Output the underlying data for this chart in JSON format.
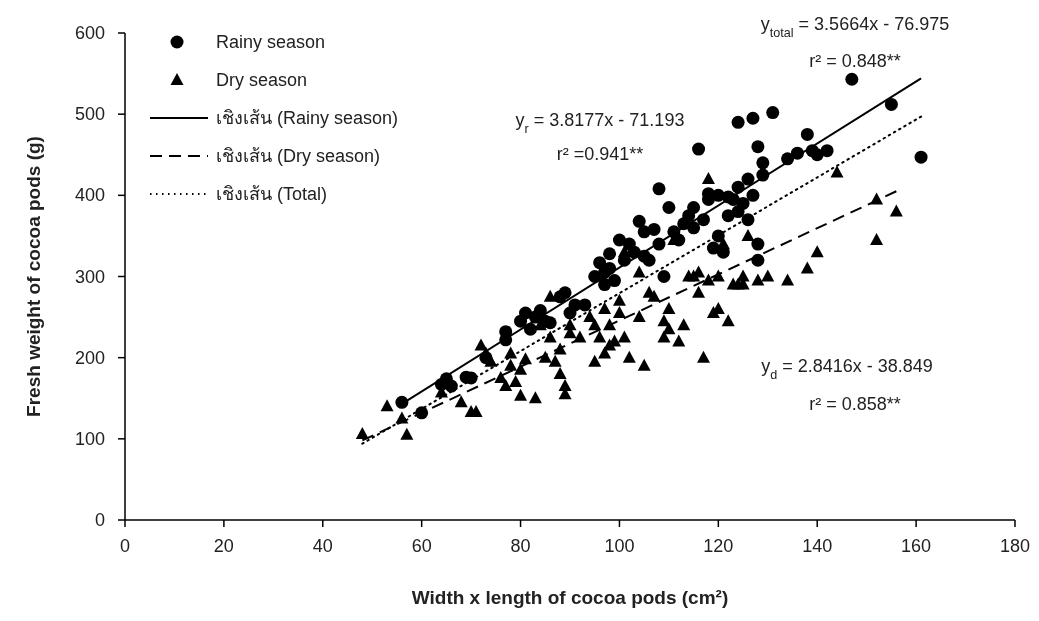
{
  "chart_data": {
    "type": "scatter",
    "xlabel": "Width x length of cocoa pods (cm²)",
    "ylabel": "Fresh weight of cocoa pods (g)",
    "xlim": [
      0,
      180
    ],
    "xticks": [
      0,
      20,
      40,
      60,
      80,
      100,
      120,
      140,
      160,
      180
    ],
    "ylim": [
      0,
      600
    ],
    "yticks": [
      0,
      100,
      200,
      300,
      400,
      500,
      600
    ],
    "grid": false,
    "legend": "top left",
    "series": [
      {
        "type": "scatter",
        "name": "Rainy season",
        "color": "#000000",
        "marker": "circle",
        "x": [
          56,
          60,
          64,
          65,
          66,
          69,
          70,
          73,
          77,
          77,
          80,
          81,
          82,
          83,
          84,
          85,
          86,
          88,
          89,
          90,
          91,
          93,
          95,
          96,
          97,
          97,
          98,
          98,
          99,
          100,
          101,
          102,
          103,
          104,
          105,
          105,
          106,
          107,
          108,
          108,
          109,
          110,
          111,
          112,
          113,
          114,
          115,
          115,
          116,
          117,
          118,
          118,
          119,
          120,
          120,
          121,
          122,
          122,
          123,
          124,
          124,
          124,
          125,
          126,
          126,
          127,
          127,
          128,
          128,
          128,
          129,
          129,
          131,
          134,
          136,
          138,
          139,
          140,
          142,
          147,
          155,
          161
        ],
        "values": [
          145,
          132,
          167,
          174,
          165,
          176,
          175,
          200,
          222,
          232,
          245,
          255,
          235,
          250,
          258,
          245,
          243,
          275,
          280,
          255,
          265,
          265,
          300,
          317,
          305,
          290,
          328,
          310,
          295,
          345,
          320,
          340,
          330,
          368,
          355,
          325,
          320,
          358,
          408,
          340,
          300,
          385,
          355,
          345,
          365,
          375,
          385,
          360,
          457,
          370,
          395,
          402,
          335,
          350,
          400,
          330,
          375,
          398,
          395,
          490,
          410,
          380,
          390,
          420,
          370,
          495,
          400,
          320,
          340,
          460,
          440,
          425,
          502,
          445,
          452,
          475,
          455,
          450,
          455,
          543,
          512,
          447
        ]
      },
      {
        "type": "scatter",
        "name": "Dry season",
        "color": "#000000",
        "marker": "triangle",
        "x": [
          48,
          53,
          56,
          57,
          64,
          68,
          70,
          71,
          72,
          73,
          74,
          76,
          77,
          78,
          78,
          79,
          80,
          80,
          81,
          83,
          84,
          85,
          86,
          86,
          87,
          88,
          88,
          89,
          89,
          90,
          90,
          92,
          94,
          95,
          95,
          96,
          97,
          97,
          98,
          98,
          99,
          100,
          100,
          101,
          101,
          102,
          104,
          104,
          105,
          106,
          107,
          109,
          109,
          110,
          110,
          111,
          112,
          113,
          114,
          115,
          116,
          116,
          117,
          118,
          118,
          119,
          120,
          120,
          121,
          122,
          123,
          124,
          125,
          125,
          126,
          128,
          130,
          134,
          138,
          140,
          144,
          152,
          152,
          156
        ],
        "values": [
          106,
          140,
          125,
          105,
          157,
          145,
          133,
          133,
          215,
          205,
          195,
          175,
          165,
          205,
          190,
          170,
          153,
          185,
          198,
          150,
          240,
          200,
          275,
          225,
          195,
          180,
          210,
          165,
          155,
          240,
          230,
          225,
          250,
          240,
          195,
          225,
          260,
          205,
          240,
          215,
          220,
          270,
          255,
          225,
          330,
          200,
          250,
          305,
          190,
          280,
          275,
          245,
          225,
          260,
          235,
          345,
          220,
          240,
          300,
          300,
          280,
          305,
          200,
          420,
          295,
          255,
          300,
          260,
          340,
          245,
          290,
          290,
          300,
          290,
          350,
          295,
          300,
          295,
          310,
          330,
          428,
          395,
          345,
          380
        ]
      },
      {
        "type": "line",
        "name": "เชิงเส้น (Rainy season)",
        "color": "#000000",
        "line_style": "solid",
        "x": [
          56,
          161
        ],
        "values": [
          143,
          544
        ]
      },
      {
        "type": "line",
        "name": "เชิงเส้น (Dry season)",
        "color": "#000000",
        "line_style": "dashed",
        "x": [
          48,
          156
        ],
        "values": [
          98,
          405
        ]
      },
      {
        "type": "line",
        "name": "เชิงเส้น (Total)",
        "color": "#000000",
        "line_style": "dotted",
        "x": [
          48,
          161
        ],
        "values": [
          94,
          497
        ]
      }
    ],
    "annotations": [
      "y$_{total}$ = 3.5664x - 76.975",
      "r² = 0.848**",
      "y$_{r}$ = 3.8177x - 71.193",
      "r² =0.941**",
      "y$_{d}$ = 2.8416x - 38.849",
      "r² = 0.858**"
    ]
  }
}
